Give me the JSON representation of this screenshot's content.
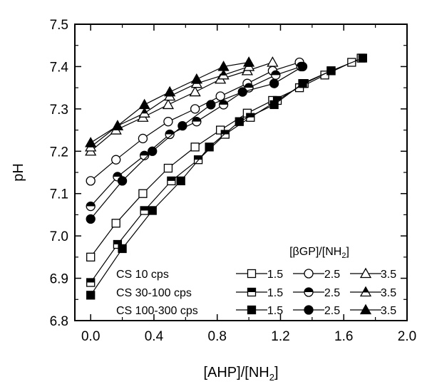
{
  "chart_data": {
    "type": "scatter",
    "xlabel": "[AHP]/[NH",
    "xlabel_sub": "2",
    "xlabel_end": "]",
    "ylabel": "pH",
    "xlim": [
      -0.1,
      2.0
    ],
    "ylim": [
      6.8,
      7.5
    ],
    "x_ticks": [
      0.0,
      0.4,
      0.8,
      1.2,
      1.6,
      2.0
    ],
    "x_tick_labels": [
      "0.0",
      "0.4",
      "0.8",
      "1.2",
      "1.6",
      "2.0"
    ],
    "y_ticks": [
      6.8,
      6.9,
      7.0,
      7.1,
      7.2,
      7.3,
      7.4,
      7.5
    ],
    "y_tick_labels": [
      "6.8",
      "6.9",
      "7.0",
      "7.1",
      "7.2",
      "7.3",
      "7.4",
      "7.5"
    ],
    "grid": false,
    "legend": {
      "title": "[βGP]/[NH",
      "title_sub": "2",
      "title_end": "]",
      "placement": "bottom-right",
      "rows": [
        {
          "label": "CS 10 cps",
          "entries": [
            {
              "marker": "square",
              "fill": "open",
              "value": "1.5"
            },
            {
              "marker": "circle",
              "fill": "open",
              "value": "2.5"
            },
            {
              "marker": "triangle",
              "fill": "open",
              "value": "3.5"
            }
          ]
        },
        {
          "label": "CS 30-100 cps",
          "entries": [
            {
              "marker": "square",
              "fill": "half",
              "value": "1.5"
            },
            {
              "marker": "circle",
              "fill": "half",
              "value": "2.5"
            },
            {
              "marker": "triangle",
              "fill": "half",
              "value": "3.5"
            }
          ]
        },
        {
          "label": "CS 100-300 cps",
          "entries": [
            {
              "marker": "square",
              "fill": "filled",
              "value": "1.5"
            },
            {
              "marker": "circle",
              "fill": "filled",
              "value": "2.5"
            },
            {
              "marker": "triangle",
              "fill": "filled",
              "value": "3.5"
            }
          ]
        }
      ]
    },
    "series": [
      {
        "marker": "square",
        "fill": "open",
        "x": [
          0,
          0.16,
          0.33,
          0.49,
          0.66,
          0.82,
          0.99,
          1.15,
          1.32,
          1.48,
          1.65,
          1.71
        ],
        "y": [
          6.95,
          7.03,
          7.1,
          7.16,
          7.21,
          7.25,
          7.29,
          7.32,
          7.35,
          7.38,
          7.41,
          7.42
        ]
      },
      {
        "marker": "square",
        "fill": "half",
        "x": [
          0,
          0.17,
          0.34,
          0.51,
          0.68,
          0.85,
          1.01,
          1.18,
          1.35,
          1.52
        ],
        "y": [
          6.89,
          6.98,
          7.06,
          7.13,
          7.18,
          7.24,
          7.28,
          7.32,
          7.36,
          7.39
        ]
      },
      {
        "marker": "square",
        "fill": "filled",
        "x": [
          0,
          0.2,
          0.39,
          0.57,
          0.75,
          0.94,
          1.16,
          1.34,
          1.52,
          1.72
        ],
        "y": [
          6.86,
          6.97,
          7.06,
          7.13,
          7.21,
          7.27,
          7.31,
          7.36,
          7.39,
          7.42
        ]
      },
      {
        "marker": "circle",
        "fill": "open",
        "x": [
          0,
          0.16,
          0.33,
          0.49,
          0.66,
          0.82,
          0.99,
          1.15,
          1.32
        ],
        "y": [
          7.13,
          7.18,
          7.23,
          7.27,
          7.3,
          7.33,
          7.36,
          7.39,
          7.41
        ]
      },
      {
        "marker": "circle",
        "fill": "half",
        "x": [
          0,
          0.17,
          0.34,
          0.5,
          0.67,
          0.84,
          1.0,
          1.17,
          1.33
        ],
        "y": [
          7.07,
          7.14,
          7.19,
          7.24,
          7.27,
          7.31,
          7.35,
          7.38,
          7.4
        ]
      },
      {
        "marker": "circle",
        "fill": "filled",
        "x": [
          0,
          0.2,
          0.39,
          0.58,
          0.76,
          0.96,
          1.16,
          1.34
        ],
        "y": [
          7.04,
          7.13,
          7.2,
          7.26,
          7.31,
          7.34,
          7.36,
          7.4
        ]
      },
      {
        "marker": "triangle",
        "fill": "open",
        "x": [
          0,
          0.16,
          0.33,
          0.49,
          0.66,
          0.82,
          0.99,
          1.15
        ],
        "y": [
          7.2,
          7.25,
          7.28,
          7.31,
          7.34,
          7.37,
          7.39,
          7.41
        ]
      },
      {
        "marker": "triangle",
        "fill": "half",
        "x": [
          0,
          0.17,
          0.34,
          0.5,
          0.67,
          0.84,
          1.0
        ],
        "y": [
          7.21,
          7.26,
          7.29,
          7.33,
          7.36,
          7.38,
          7.4
        ]
      },
      {
        "marker": "triangle",
        "fill": "filled",
        "x": [
          0,
          0.17,
          0.34,
          0.5,
          0.67,
          0.84,
          1.0
        ],
        "y": [
          7.22,
          7.26,
          7.31,
          7.34,
          7.37,
          7.4,
          7.41
        ]
      }
    ]
  }
}
